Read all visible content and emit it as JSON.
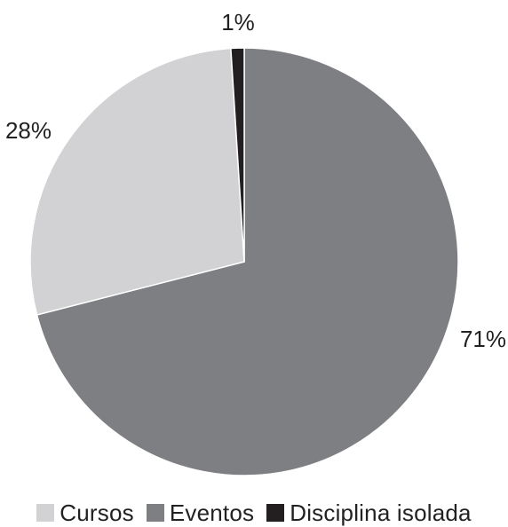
{
  "chart_data": {
    "type": "pie",
    "title": "",
    "categories": [
      "Cursos",
      "Eventos",
      "Disciplina isolada"
    ],
    "values": [
      28,
      71,
      1
    ],
    "value_labels": [
      "28%",
      "71%",
      "1%"
    ],
    "colors": [
      "#d2d2d4",
      "#7e7f83",
      "#231f20"
    ],
    "legend_position": "bottom",
    "start": "top",
    "direction": "clockwise_from_eventos"
  }
}
